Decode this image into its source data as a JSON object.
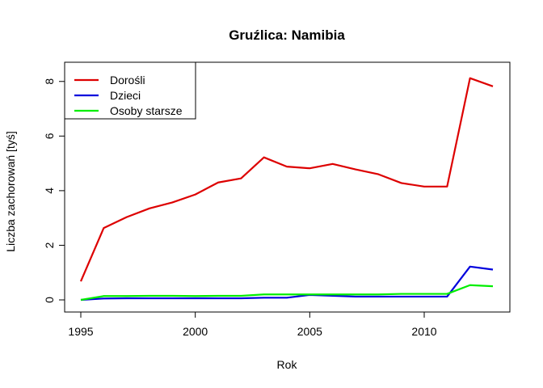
{
  "chart_data": {
    "type": "line",
    "title": "Gruźlica: Namibia",
    "xlabel": "Rok",
    "ylabel": "Liczba zachorowań [tyś]",
    "xlim": [
      1995,
      2013
    ],
    "ylim": [
      0,
      8.2
    ],
    "x_ticks": [
      1995,
      2000,
      2005,
      2010
    ],
    "y_ticks": [
      0,
      2,
      4,
      6,
      8
    ],
    "grid": false,
    "legend_position": "top-left",
    "x": [
      1995,
      1996,
      1997,
      1998,
      1999,
      2000,
      2001,
      2002,
      2003,
      2004,
      2005,
      2006,
      2007,
      2008,
      2009,
      2010,
      2011,
      2012,
      2013
    ],
    "series": [
      {
        "name": "Dorośli",
        "color": "#dd0000",
        "values": [
          0.68,
          2.63,
          3.03,
          3.35,
          3.57,
          3.86,
          4.3,
          4.45,
          5.22,
          4.88,
          4.82,
          4.98,
          4.78,
          4.6,
          4.28,
          4.15,
          4.15,
          8.12,
          7.82
        ]
      },
      {
        "name": "Dzieci",
        "color": "#0000dd",
        "values": [
          0.0,
          0.05,
          0.06,
          0.06,
          0.06,
          0.06,
          0.06,
          0.06,
          0.08,
          0.08,
          0.18,
          0.15,
          0.12,
          0.12,
          0.12,
          0.12,
          0.12,
          1.22,
          1.11
        ]
      },
      {
        "name": "Osoby starsze",
        "color": "#00ee00",
        "values": [
          0.0,
          0.14,
          0.14,
          0.15,
          0.15,
          0.14,
          0.15,
          0.15,
          0.2,
          0.2,
          0.2,
          0.2,
          0.2,
          0.2,
          0.22,
          0.22,
          0.22,
          0.54,
          0.5
        ]
      }
    ]
  }
}
